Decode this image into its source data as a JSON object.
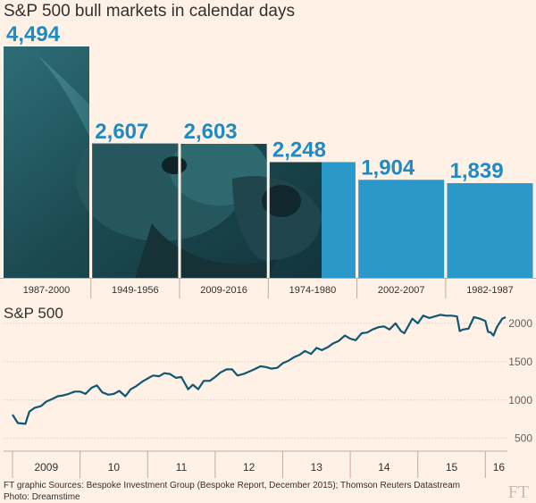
{
  "bar_chart": {
    "title": "S&P 500 bull markets in calendar days"
  },
  "line_chart": {
    "title": "S&P 500"
  },
  "footer": {
    "line1": "FT graphic   Sources: Bespoke Investment Group (Bespoke Report, December 2015); Thomson Reuters Datastream",
    "line2": "Photo: Dreamstime",
    "logo": "FT"
  },
  "colors": {
    "bar": "#2a98c9",
    "label": "#1e8bc3",
    "line": "#0f5775",
    "photo_dark": "#1c3f46",
    "grid": "#d9cfc4",
    "background": "#fff1e5"
  },
  "chart_data": [
    {
      "type": "bar",
      "title": "S&P 500 bull markets in calendar days",
      "categories": [
        "1987-2000",
        "1949-1956",
        "2009-2016",
        "1974-1980",
        "2002-2007",
        "1982-1987"
      ],
      "values": [
        4494,
        2607,
        2603,
        2248,
        1904,
        1839
      ],
      "value_labels": [
        "4,494",
        "2,607",
        "2,603",
        "2,248",
        "1,904",
        "1,839"
      ],
      "ylim": [
        0,
        4494
      ]
    },
    {
      "type": "line",
      "title": "S&P 500",
      "x_tick_labels": [
        "2009",
        "10",
        "11",
        "12",
        "13",
        "14",
        "15",
        "16"
      ],
      "y_ticks": [
        500,
        1000,
        1500,
        2000
      ],
      "ylim": [
        450,
        2150
      ],
      "xlim": [
        2009.0,
        2016.3
      ],
      "y_axis_position": "right",
      "grid": true,
      "series": [
        {
          "x": [
            2009.0,
            2009.08,
            2009.19,
            2009.25,
            2009.33,
            2009.42,
            2009.5,
            2009.58,
            2009.67,
            2009.75,
            2009.83,
            2009.92,
            2010.0,
            2010.08,
            2010.17,
            2010.25,
            2010.33,
            2010.42,
            2010.5,
            2010.58,
            2010.67,
            2010.75,
            2010.83,
            2010.92,
            2011.0,
            2011.08,
            2011.17,
            2011.25,
            2011.33,
            2011.42,
            2011.5,
            2011.6,
            2011.67,
            2011.75,
            2011.83,
            2011.92,
            2012.0,
            2012.08,
            2012.17,
            2012.25,
            2012.33,
            2012.42,
            2012.5,
            2012.58,
            2012.67,
            2012.75,
            2012.83,
            2012.92,
            2013.0,
            2013.08,
            2013.17,
            2013.25,
            2013.33,
            2013.42,
            2013.5,
            2013.58,
            2013.67,
            2013.75,
            2013.83,
            2013.92,
            2014.0,
            2014.08,
            2014.17,
            2014.25,
            2014.33,
            2014.42,
            2014.5,
            2014.58,
            2014.67,
            2014.75,
            2014.8,
            2014.92,
            2015.0,
            2015.08,
            2015.17,
            2015.25,
            2015.33,
            2015.42,
            2015.5,
            2015.58,
            2015.62,
            2015.67,
            2015.75,
            2015.83,
            2015.92,
            2016.0,
            2016.04,
            2016.08,
            2016.12,
            2016.17,
            2016.25,
            2016.3
          ],
          "y": [
            810,
            700,
            690,
            850,
            900,
            920,
            980,
            1010,
            1050,
            1060,
            1080,
            1110,
            1110,
            1080,
            1160,
            1190,
            1100,
            1070,
            1080,
            1120,
            1050,
            1140,
            1180,
            1240,
            1280,
            1320,
            1310,
            1350,
            1340,
            1290,
            1300,
            1140,
            1200,
            1140,
            1250,
            1250,
            1300,
            1360,
            1400,
            1400,
            1320,
            1340,
            1370,
            1400,
            1440,
            1430,
            1410,
            1420,
            1480,
            1510,
            1560,
            1590,
            1640,
            1600,
            1680,
            1650,
            1690,
            1740,
            1770,
            1840,
            1800,
            1780,
            1870,
            1880,
            1920,
            1950,
            1960,
            1920,
            2000,
            1900,
            1870,
            2060,
            2000,
            2100,
            2070,
            2090,
            2110,
            2100,
            2100,
            2090,
            1900,
            1920,
            1930,
            2080,
            2060,
            2030,
            1890,
            1880,
            1840,
            1950,
            2060,
            2080
          ]
        }
      ]
    }
  ]
}
